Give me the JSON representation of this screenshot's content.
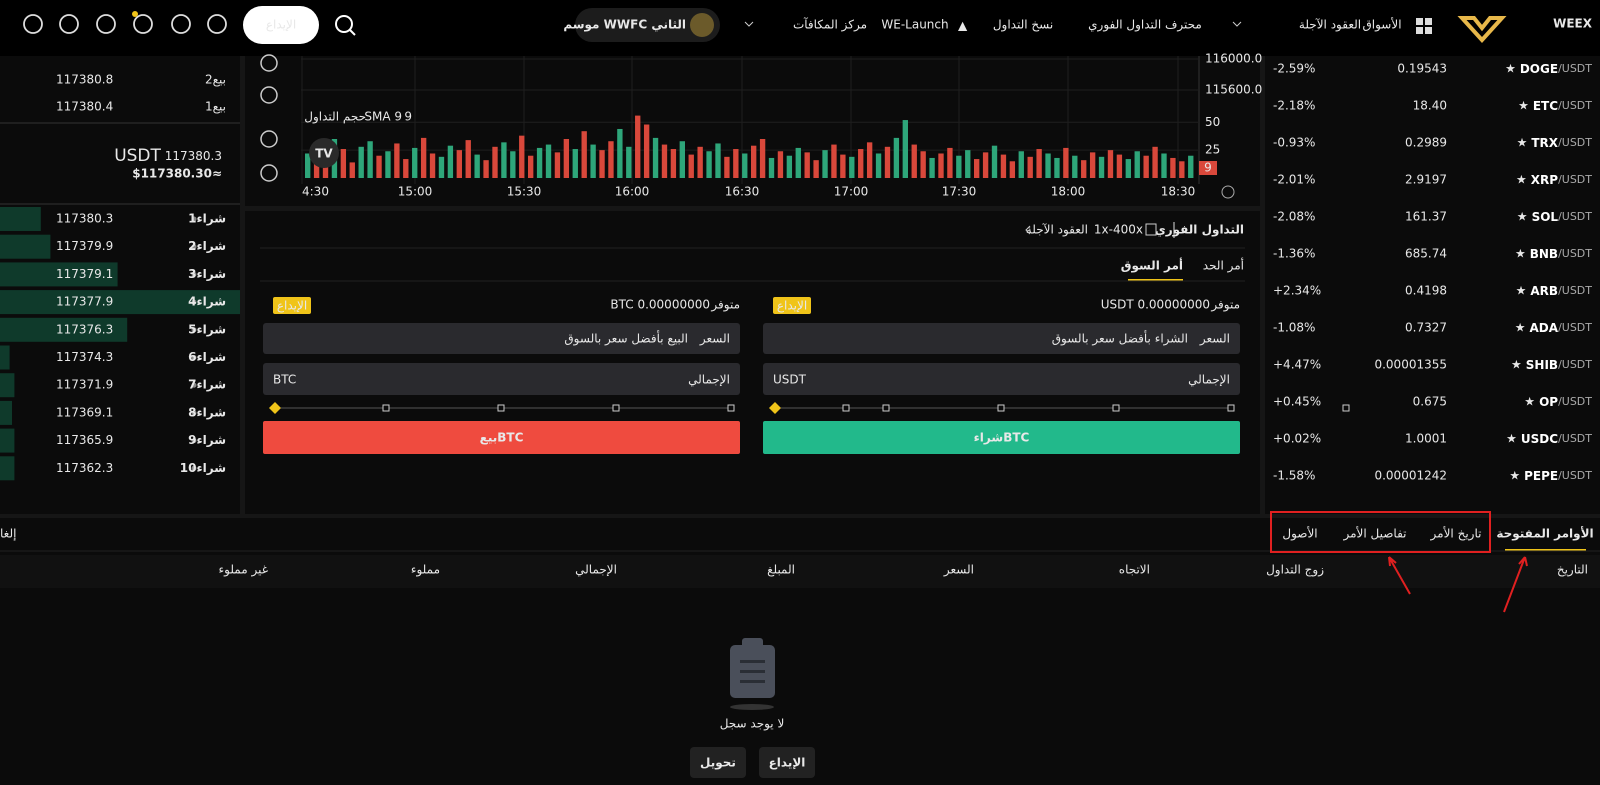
{
  "nav": {
    "logo": "WEEX",
    "items": [
      "الأسواق",
      "العقود الآجلة",
      "محترف التداول الفوري",
      "نسخ التداول",
      "WE-Launch",
      "مركز المكافآت"
    ],
    "season": "موسم WWFC الثاني",
    "deposit": "الإيداع"
  },
  "markets": {
    "quote": "/USDT",
    "rows": [
      {
        "symbol": "DOGE",
        "price": "0.19543",
        "change": "-2.59%"
      },
      {
        "symbol": "ETC",
        "price": "18.40",
        "change": "-2.18%"
      },
      {
        "symbol": "TRX",
        "price": "0.2989",
        "change": "-0.93%"
      },
      {
        "symbol": "XRP",
        "price": "2.9197",
        "change": "-2.01%"
      },
      {
        "symbol": "SOL",
        "price": "161.37",
        "change": "-2.08%"
      },
      {
        "symbol": "BNB",
        "price": "685.74",
        "change": "-1.36%"
      },
      {
        "symbol": "ARB",
        "price": "0.4198",
        "change": "+2.34%"
      },
      {
        "symbol": "ADA",
        "price": "0.7327",
        "change": "-1.08%"
      },
      {
        "symbol": "SHIB",
        "price": "0.00001355",
        "change": "+4.47%"
      },
      {
        "symbol": "OP",
        "price": "0.675",
        "change": "+0.45%"
      },
      {
        "symbol": "USDC",
        "price": "1.0001",
        "change": "+0.02%"
      },
      {
        "symbol": "PEPE",
        "price": "0.00001242",
        "change": "-1.58%"
      }
    ]
  },
  "orderbook": {
    "asks": [
      {
        "label": "بيع2",
        "price": "117380.8"
      },
      {
        "label": "بيع1",
        "price": "117380.4"
      }
    ],
    "last_price": "117380.3",
    "last_unit": "USDT",
    "fiat": "$117380.30≈",
    "bids": [
      {
        "label": "شراء1",
        "price": "117380.3",
        "depth": 17
      },
      {
        "label": "شراء2",
        "price": "117379.9",
        "depth": 21
      },
      {
        "label": "شراء3",
        "price": "117379.1",
        "depth": 49
      },
      {
        "label": "شراء4",
        "price": "117377.9",
        "depth": 100
      },
      {
        "label": "شراء5",
        "price": "117376.3",
        "depth": 53
      },
      {
        "label": "شراء6",
        "price": "117374.3",
        "depth": 4
      },
      {
        "label": "شراء7",
        "price": "117371.9",
        "depth": 6
      },
      {
        "label": "شراء8",
        "price": "117369.1",
        "depth": 5
      },
      {
        "label": "شراء9",
        "price": "117365.9",
        "depth": 6
      },
      {
        "label": "شراء10",
        "price": "117362.3",
        "depth": 6
      }
    ]
  },
  "chart": {
    "x_ticks": [
      "4:30",
      "15:00",
      "15:30",
      "16:00",
      "16:30",
      "17:00",
      "17:30",
      "18:00",
      "18:30"
    ],
    "price_ticks": [
      "116000.0",
      "115600.0"
    ],
    "volume_label": "حجم التداول",
    "sma": "SMA 9",
    "sma_value": "9",
    "badge": "9",
    "volume": {
      "ylim": [
        0,
        70
      ],
      "yticks": [
        50,
        25
      ],
      "up_color": "#2ea67a",
      "down_color": "#d9483b",
      "directions": "uddudduududdudduuddudduudduuddududduudduddudduuddudduduudduddudduduuddudduudduddudduududdudduudduddu",
      "values": [
        22,
        30,
        18,
        35,
        26,
        14,
        28,
        33,
        20,
        24,
        31,
        17,
        27,
        36,
        22,
        19,
        29,
        25,
        34,
        21,
        16,
        28,
        32,
        24,
        38,
        20,
        27,
        30,
        23,
        35,
        26,
        42,
        30,
        25,
        33,
        44,
        28,
        56,
        48,
        36,
        30,
        26,
        33,
        21,
        28,
        24,
        31,
        19,
        26,
        22,
        29,
        35,
        18,
        24,
        20,
        27,
        23,
        16,
        25,
        30,
        21,
        19,
        26,
        32,
        22,
        28,
        36,
        52,
        30,
        24,
        18,
        22,
        27,
        20,
        25,
        17,
        23,
        29,
        21,
        15,
        24,
        19,
        26,
        22,
        18,
        27,
        20,
        16,
        23,
        19,
        25,
        21,
        17,
        24,
        20,
        28,
        22,
        18,
        15,
        20
      ]
    }
  },
  "form": {
    "breadcrumb": {
      "spot": "التداول الفوري",
      "leverage": "1x-400x",
      "futures": "العقود الآجلة"
    },
    "tabs": [
      "أمر الحد",
      "أمر السوق"
    ],
    "buy": {
      "available_label": "متوفر",
      "available": "USDT 0.00000000",
      "deposit": "الإيداع",
      "price_label": "السعر",
      "price_placeholder": "الشراء بأفضل سعر بالسوق",
      "total_label": "الإجمالي",
      "total_unit": "USDT",
      "button": "شراءBTC"
    },
    "sell": {
      "available_label": "متوفر",
      "available": "BTC 0.00000000",
      "deposit": "الإيداع",
      "price_label": "السعر",
      "price_placeholder": "البيع بأفضل سعر بالسوق",
      "total_label": "الإجمالي",
      "total_unit": "BTC",
      "button": "بيعBTC"
    }
  },
  "orders": {
    "tabs": [
      "الأوامر المفتوحة",
      "تاريخ الأمر",
      "تفاصيل الأمر",
      "الأصول"
    ],
    "cancel": "إلغا",
    "headers": [
      "التاريخ",
      "زوج التداول",
      "الاتجاه",
      "السعر",
      "المبلغ",
      "الإجمالي",
      "مملوء",
      "غير مملوء"
    ],
    "empty": "لا يوجد سجل",
    "buttons": [
      "الإيداع",
      "تحويل"
    ]
  }
}
